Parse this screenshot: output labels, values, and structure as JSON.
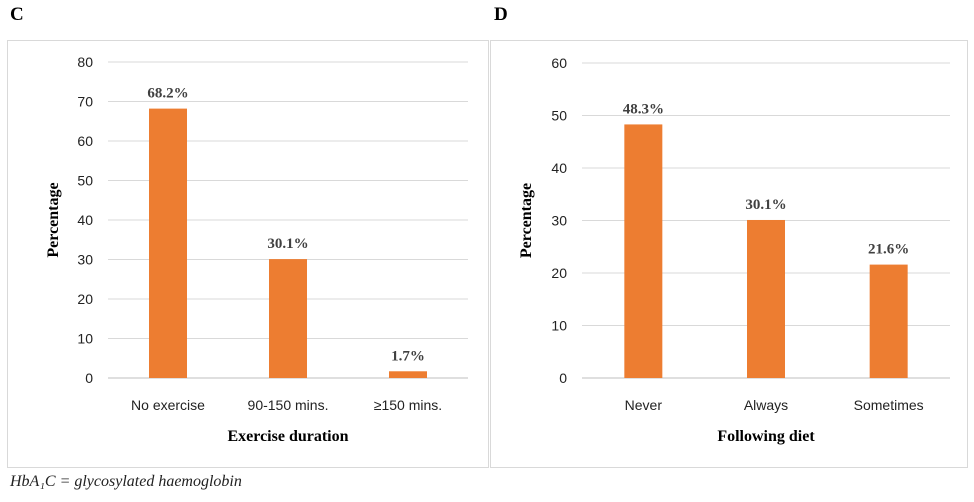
{
  "panels": [
    {
      "letter": "C"
    },
    {
      "letter": "D"
    }
  ],
  "footnote": "HbA₁C = glycosylated haemoglobin",
  "chart_data": [
    {
      "type": "bar",
      "categories": [
        "No exercise",
        "90-150 mins.",
        "≥150 mins."
      ],
      "values": [
        68.2,
        30.1,
        1.7
      ],
      "data_labels": [
        "68.2%",
        "30.1%",
        "1.7%"
      ],
      "xlabel": "Exercise duration",
      "ylabel": "Percentage",
      "ylim": [
        0,
        80
      ],
      "yticks": [
        0,
        10,
        20,
        30,
        40,
        50,
        60,
        70,
        80
      ],
      "grid": true,
      "bar_color": "#ED7D31",
      "grid_color": "#D9D9D9"
    },
    {
      "type": "bar",
      "categories": [
        "Never",
        "Always",
        "Sometimes"
      ],
      "values": [
        48.3,
        30.1,
        21.6
      ],
      "data_labels": [
        "48.3%",
        "30.1%",
        "21.6%"
      ],
      "xlabel": "Following diet",
      "ylabel": "Percentage",
      "ylim": [
        0,
        60
      ],
      "yticks": [
        0,
        10,
        20,
        30,
        40,
        50,
        60
      ],
      "grid": true,
      "bar_color": "#ED7D31",
      "grid_color": "#D9D9D9"
    }
  ]
}
